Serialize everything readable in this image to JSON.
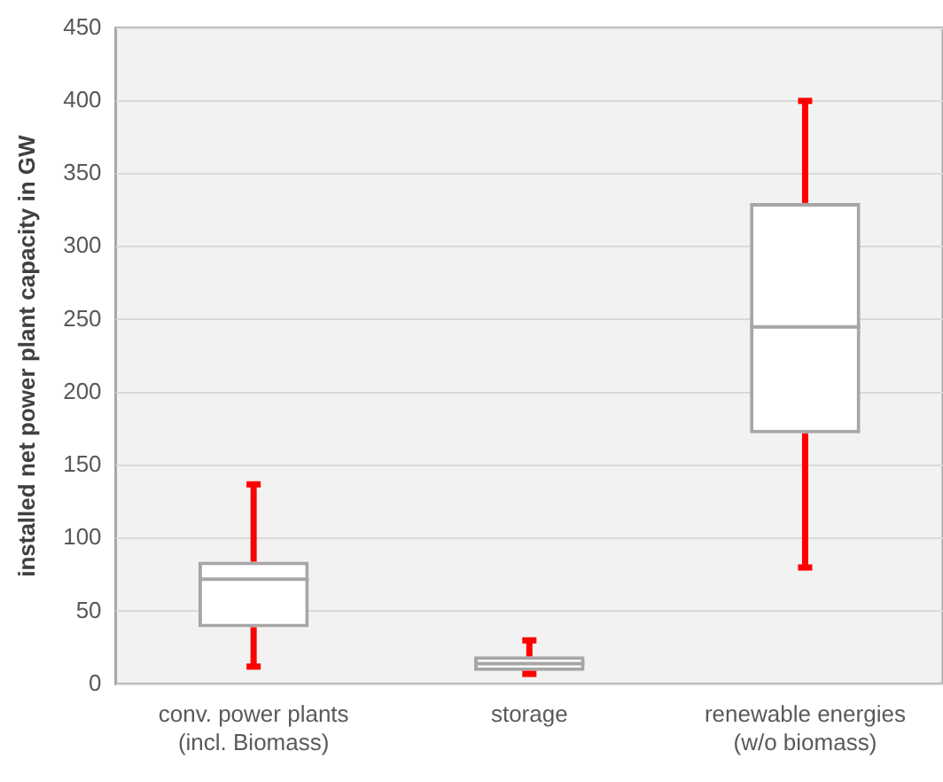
{
  "chart_data": {
    "type": "box",
    "ylabel": "installed net power plant capacity in GW",
    "categories": [
      "conv. power plants\n(incl. Biomass)",
      "storage",
      "renewable energies\n(w/o biomass)"
    ],
    "series": [
      {
        "color": "#a6a6a6",
        "boxes": [
          {
            "low": 12,
            "q1": 39,
            "median": 72,
            "q3": 84,
            "high": 137
          },
          {
            "low": 7,
            "q1": 9,
            "median": 14,
            "q3": 19,
            "high": 30
          },
          {
            "low": 80,
            "q1": 172,
            "median": 245,
            "q3": 330,
            "high": 400
          }
        ]
      }
    ],
    "ylim": [
      0,
      450
    ],
    "yticks": [
      0,
      50,
      100,
      150,
      200,
      250,
      300,
      350,
      400,
      450
    ],
    "grid": "y",
    "legend": false
  }
}
